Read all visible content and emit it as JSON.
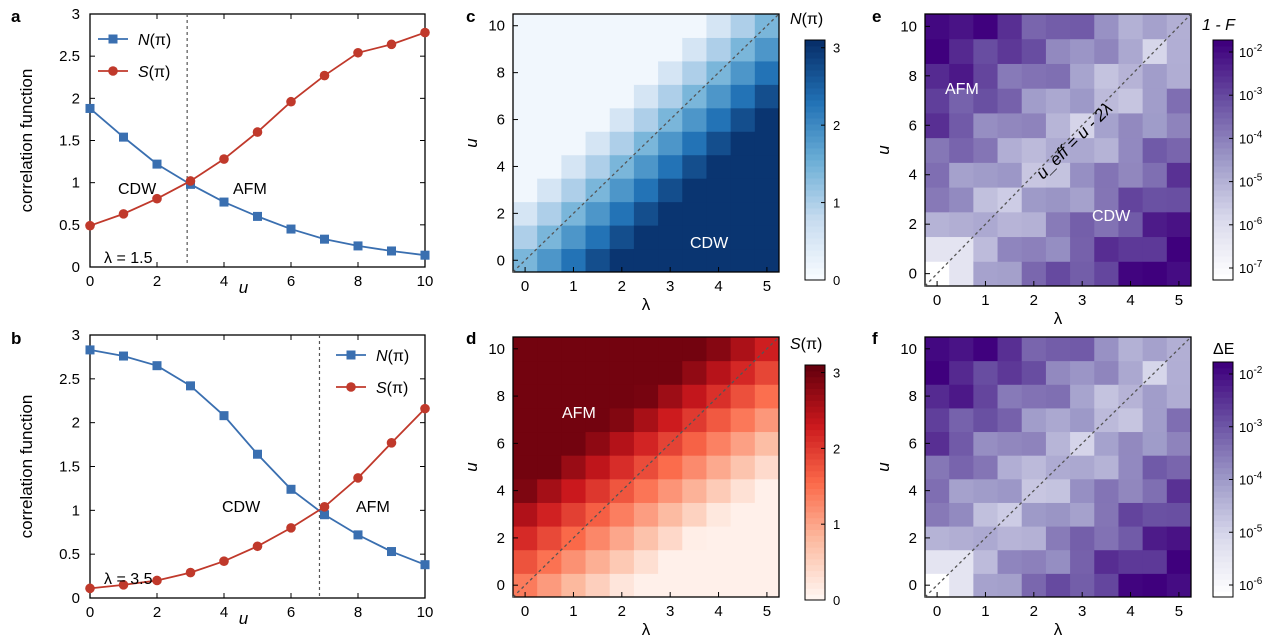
{
  "panel_labels": {
    "a": "a",
    "b": "b",
    "c": "c",
    "d": "d",
    "e": "e",
    "f": "f"
  },
  "chart_data": [
    {
      "panel": "a",
      "type": "line",
      "ylabel": "correlation function",
      "xlabel": "u",
      "xlim": [
        0,
        10
      ],
      "ylim": [
        0,
        3
      ],
      "xticks": [
        "0",
        "2",
        "4",
        "6",
        "8",
        "10"
      ],
      "yticks": [
        "0",
        "0.5",
        "1",
        "1.5",
        "2",
        "2.5",
        "3"
      ],
      "x": [
        0,
        1,
        2,
        3,
        4,
        5,
        6,
        7,
        8,
        9,
        10
      ],
      "series": [
        {
          "name": "N(π)",
          "name_base": "N",
          "name_arg": "(π)",
          "color": "#3a6fb0",
          "marker": "square",
          "values": [
            1.88,
            1.54,
            1.22,
            0.98,
            0.77,
            0.6,
            0.45,
            0.33,
            0.25,
            0.19,
            0.14
          ]
        },
        {
          "name": "S(π)",
          "name_base": "S",
          "name_arg": "(π)",
          "color": "#c0392b",
          "marker": "circle",
          "values": [
            0.49,
            0.63,
            0.81,
            1.02,
            1.28,
            1.6,
            1.96,
            2.27,
            2.54,
            2.64,
            2.78
          ]
        }
      ],
      "vline_x": 2.9,
      "annotations": {
        "left_phase": "CDW",
        "right_phase": "AFM",
        "param": "λ = 1.5"
      },
      "grid": false,
      "legend": "top-left"
    },
    {
      "panel": "b",
      "type": "line",
      "ylabel": "correlation function",
      "xlabel": "u",
      "xlim": [
        0,
        10
      ],
      "ylim": [
        0,
        3
      ],
      "xticks": [
        "0",
        "2",
        "4",
        "6",
        "8",
        "10"
      ],
      "yticks": [
        "0",
        "0.5",
        "1",
        "1.5",
        "2",
        "2.5",
        "3"
      ],
      "x": [
        0,
        1,
        2,
        3,
        4,
        5,
        6,
        7,
        8,
        9,
        10
      ],
      "series": [
        {
          "name": "N(π)",
          "name_base": "N",
          "name_arg": "(π)",
          "color": "#3a6fb0",
          "marker": "square",
          "values": [
            2.83,
            2.76,
            2.65,
            2.42,
            2.08,
            1.64,
            1.24,
            0.95,
            0.72,
            0.53,
            0.38
          ]
        },
        {
          "name": "S(π)",
          "name_base": "S",
          "name_arg": "(π)",
          "color": "#c0392b",
          "marker": "circle",
          "values": [
            0.11,
            0.15,
            0.2,
            0.29,
            0.42,
            0.59,
            0.8,
            1.04,
            1.37,
            1.77,
            2.16
          ]
        }
      ],
      "vline_x": 6.85,
      "annotations": {
        "left_phase": "CDW",
        "right_phase": "AFM",
        "param": "λ = 3.5"
      },
      "grid": false,
      "legend": "top-right"
    },
    {
      "panel": "c",
      "type": "heatmap",
      "xlabel": "λ",
      "ylabel": "u",
      "xticks": [
        "0",
        "1",
        "2",
        "3",
        "4",
        "5"
      ],
      "yticks": [
        "0",
        "2",
        "4",
        "6",
        "8",
        "10"
      ],
      "colorbar_label": "N(π)",
      "colorbar_base": "N",
      "colorbar_arg": "(π)",
      "colorbar_ticks": [
        "0",
        "1",
        "2",
        "3"
      ],
      "colorscale": [
        "#f7fbff",
        "#c6dbef",
        "#6baed6",
        "#2171b5",
        "#08306b"
      ],
      "quantity": "N",
      "annotations": {
        "phase": "CDW"
      }
    },
    {
      "panel": "d",
      "type": "heatmap",
      "xlabel": "λ",
      "ylabel": "u",
      "xticks": [
        "0",
        "1",
        "2",
        "3",
        "4",
        "5"
      ],
      "yticks": [
        "0",
        "2",
        "4",
        "6",
        "8",
        "10"
      ],
      "colorbar_label": "S(π)",
      "colorbar_base": "S",
      "colorbar_arg": "(π)",
      "colorbar_ticks": [
        "0",
        "1",
        "2",
        "3"
      ],
      "colorscale": [
        "#fff5f0",
        "#fcbba1",
        "#fb6a4a",
        "#cb181d",
        "#67000d"
      ],
      "quantity": "S",
      "annotations": {
        "phase": "AFM"
      }
    },
    {
      "panel": "e",
      "type": "heatmap",
      "xlabel": "λ",
      "ylabel": "u",
      "xticks": [
        "0",
        "1",
        "2",
        "3",
        "4",
        "5"
      ],
      "yticks": [
        "0",
        "2",
        "4",
        "6",
        "8",
        "10"
      ],
      "colorbar_label": "1 - F",
      "colorbar_ticks": [
        "10^-2",
        "10^-3",
        "10^-4",
        "10^-5",
        "10^-6",
        "10^-7"
      ],
      "colorscale": [
        "#ffffff",
        "#d9d9ec",
        "#9e9ac8",
        "#6a51a3",
        "#3f007d"
      ],
      "quantity": "E",
      "annotations": {
        "left_phase": "AFM",
        "right_phase": "CDW",
        "formula": "u_eff = u - 2λ"
      }
    },
    {
      "panel": "f",
      "type": "heatmap",
      "xlabel": "λ",
      "ylabel": "u",
      "xticks": [
        "0",
        "1",
        "2",
        "3",
        "4",
        "5"
      ],
      "yticks": [
        "0",
        "2",
        "4",
        "6",
        "8",
        "10"
      ],
      "colorbar_label": "ΔE",
      "colorbar_ticks": [
        "10^-2",
        "10^-3",
        "10^-4",
        "10^-5",
        "10^-6"
      ],
      "colorscale": [
        "#ffffff",
        "#d9d9ec",
        "#9e9ac8",
        "#6a51a3",
        "#3f007d"
      ],
      "quantity": "E"
    }
  ]
}
